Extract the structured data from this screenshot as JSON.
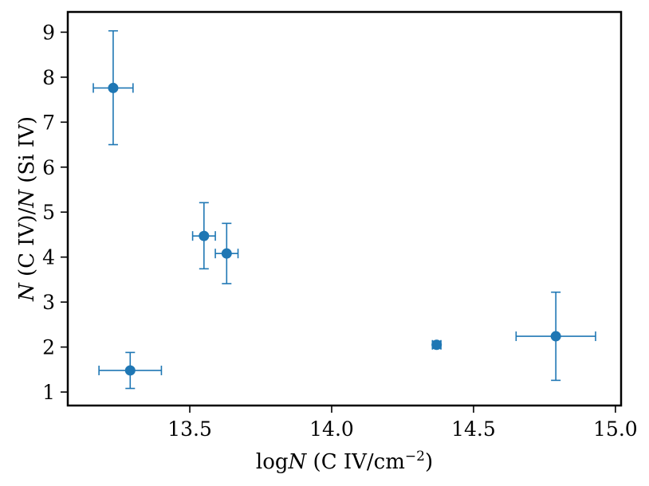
{
  "chart_data": {
    "type": "scatter",
    "xlabel": "logN (C IV/cm⁻²)",
    "ylabel": "N (C IV)/N (Si IV)",
    "xlim": [
      13.07,
      15.02
    ],
    "ylim": [
      0.7,
      9.45
    ],
    "x_ticks": [
      "13.5",
      "14.0",
      "14.5",
      "15.0"
    ],
    "x_tick_values": [
      13.5,
      14.0,
      14.5,
      15.0
    ],
    "y_ticks": [
      "1",
      "2",
      "3",
      "4",
      "5",
      "6",
      "7",
      "8",
      "9"
    ],
    "y_tick_values": [
      1,
      2,
      3,
      4,
      5,
      6,
      7,
      8,
      9
    ],
    "grid": false,
    "marker_color": "#1f77b4",
    "points": [
      {
        "x": 13.23,
        "y": 7.76,
        "xerr": 0.07,
        "yerr_low": 1.26,
        "yerr_high": 1.27
      },
      {
        "x": 13.29,
        "y": 1.48,
        "xerr": 0.11,
        "yerr_low": 0.4,
        "yerr_high": 0.4
      },
      {
        "x": 13.55,
        "y": 4.47,
        "xerr": 0.04,
        "yerr_low": 0.73,
        "yerr_high": 0.74
      },
      {
        "x": 13.63,
        "y": 4.08,
        "xerr": 0.04,
        "yerr_low": 0.67,
        "yerr_high": 0.67
      },
      {
        "x": 14.37,
        "y": 2.05,
        "xerr": 0.015,
        "yerr_low": 0.08,
        "yerr_high": 0.08
      },
      {
        "x": 14.79,
        "y": 2.24,
        "xerr": 0.14,
        "yerr_low": 0.98,
        "yerr_high": 0.98
      }
    ]
  }
}
